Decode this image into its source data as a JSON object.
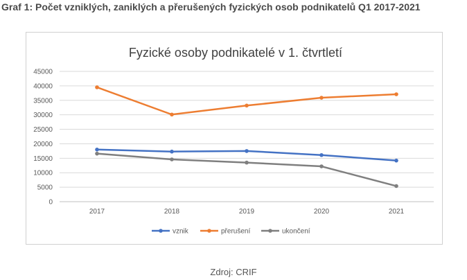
{
  "page": {
    "heading": "Graf 1: Počet vzniklých, zaniklých a přerušených fyzických osob podnikatelů Q1 2017-2021",
    "source": "Zdroj: CRIF"
  },
  "chart_data": {
    "type": "line",
    "title": "Fyzické osoby podnikatelé v 1. čtvrtletí",
    "xlabel": "",
    "ylabel": "",
    "categories": [
      "2017",
      "2018",
      "2019",
      "2020",
      "2021"
    ],
    "ylim": [
      0,
      45000
    ],
    "yticks": [
      0,
      5000,
      10000,
      15000,
      20000,
      25000,
      30000,
      35000,
      40000,
      45000
    ],
    "grid": true,
    "legend_position": "bottom",
    "series": [
      {
        "name": "vznik",
        "color": "#4472C4",
        "values": [
          18000,
          17300,
          17500,
          16100,
          14200
        ]
      },
      {
        "name": "přerušení",
        "color": "#ED7D31",
        "values": [
          39500,
          30100,
          33200,
          35900,
          37100
        ]
      },
      {
        "name": "ukončení",
        "color": "#7F7F7F",
        "values": [
          16600,
          14600,
          13500,
          12200,
          5400
        ]
      }
    ]
  }
}
